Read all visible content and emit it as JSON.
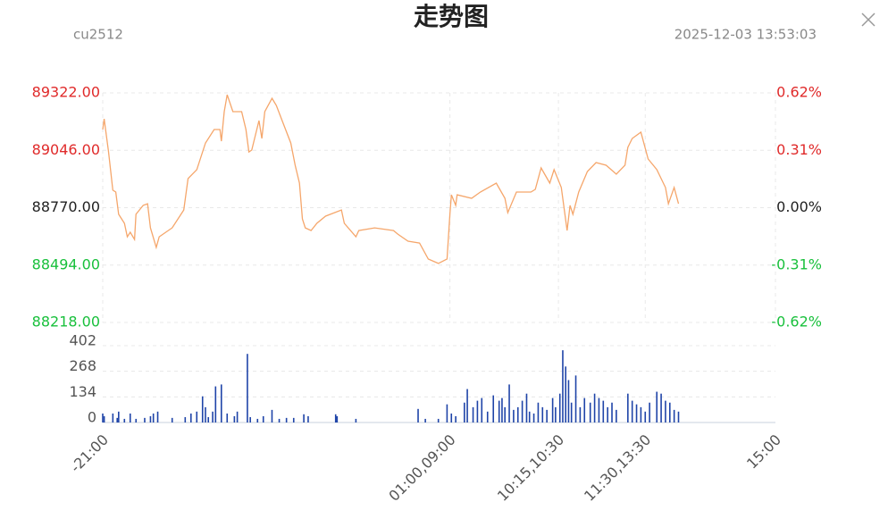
{
  "header": {
    "title": "走势图",
    "symbol": "cu2512",
    "timestamp": "2025-12-03 13:53:03"
  },
  "chart_data": [
    {
      "type": "line",
      "color": "#f5a66b",
      "up_color": "#e02a2a",
      "down_color": "#19c03c",
      "flat_color": "#222222",
      "grid": true,
      "x": [
        0,
        1,
        4,
        7,
        9,
        11,
        15,
        17,
        19,
        22,
        23,
        28,
        31,
        33,
        37,
        39,
        48,
        56,
        59,
        65,
        71,
        77,
        81,
        82,
        84,
        86,
        90,
        96,
        99,
        101,
        103,
        108,
        110,
        112,
        117,
        120,
        124,
        130,
        133,
        136,
        138,
        140,
        144,
        148,
        154,
        165,
        167,
        175,
        177,
        188,
        201,
        204,
        211,
        219,
        225,
        232,
        238,
        240,
        241,
        244,
        245,
        255,
        261,
        272,
        278,
        280,
        286,
        296,
        299,
        303,
        309,
        312,
        317,
        321,
        323,
        325,
        329,
        335,
        341,
        348,
        355,
        361,
        363,
        366,
        372,
        377,
        383,
        389,
        391,
        395,
        398
      ],
      "values": [
        89146,
        89197,
        89038,
        88854,
        88845,
        88738,
        88695,
        88630,
        88652,
        88617,
        88738,
        88781,
        88789,
        88673,
        88579,
        88630,
        88673,
        88759,
        88910,
        88953,
        89081,
        89146,
        89146,
        89090,
        89232,
        89313,
        89232,
        89232,
        89146,
        89038,
        89047,
        89189,
        89103,
        89232,
        89296,
        89262,
        89189,
        89081,
        88974,
        88888,
        88716,
        88673,
        88660,
        88695,
        88729,
        88759,
        88695,
        88630,
        88660,
        88673,
        88660,
        88643,
        88609,
        88600,
        88523,
        88502,
        88523,
        88738,
        88832,
        88781,
        88832,
        88815,
        88845,
        88888,
        88815,
        88746,
        88845,
        88845,
        88858,
        88961,
        88888,
        88953,
        88867,
        88660,
        88781,
        88738,
        88845,
        88944,
        88987,
        88974,
        88931,
        88974,
        89060,
        89103,
        89133,
        89004,
        88953,
        88867,
        88789,
        88867,
        88789
      ],
      "xlim": [
        0,
        465
      ],
      "xticks": [
        {
          "value": 0,
          "label": "-21:00"
        },
        {
          "value": 240,
          "label": "01:00,09:00"
        },
        {
          "value": 315,
          "label": "10:15,10:30"
        },
        {
          "value": 375,
          "label": "11:30,13:30"
        },
        {
          "value": 465,
          "label": "15:00"
        }
      ],
      "ylim": [
        88218,
        89322
      ],
      "yticks": [
        {
          "value": 89322,
          "label": "89322.00"
        },
        {
          "value": 89046,
          "label": "89046.00"
        },
        {
          "value": 88770,
          "label": "88770.00"
        },
        {
          "value": 88494,
          "label": "88494.00"
        },
        {
          "value": 88218,
          "label": "88218.00"
        }
      ],
      "y2lim": [
        -0.62,
        0.62
      ],
      "y2ticks": [
        {
          "value": 0.62,
          "label": "0.62%"
        },
        {
          "value": 0.31,
          "label": "0.31%"
        },
        {
          "value": 0,
          "label": "0.00%"
        },
        {
          "value": -0.31,
          "label": "-0.31%"
        },
        {
          "value": -0.62,
          "label": "-0.62%"
        }
      ]
    },
    {
      "type": "bar",
      "color": "#1f44a8",
      "grid": true,
      "x": [
        0,
        1,
        7,
        10,
        11,
        15,
        19,
        23,
        29,
        33,
        35,
        38,
        48,
        57,
        61,
        65,
        69,
        71,
        73,
        76,
        78,
        82,
        86,
        91,
        93,
        100,
        102,
        107,
        111,
        117,
        122,
        127,
        132,
        139,
        142,
        161,
        162,
        175,
        218,
        223,
        232,
        238,
        241,
        244,
        250,
        252,
        256,
        259,
        262,
        266,
        270,
        274,
        276,
        278,
        281,
        284,
        287,
        290,
        293,
        295,
        298,
        301,
        304,
        307,
        311,
        313,
        316,
        318,
        320,
        322,
        324,
        327,
        330,
        333,
        337,
        340,
        343,
        346,
        349,
        352,
        355,
        363,
        366,
        369,
        372,
        375,
        378,
        383,
        386,
        389,
        392,
        395,
        398
      ],
      "values": [
        47,
        33,
        47,
        24,
        57,
        19,
        47,
        19,
        24,
        33,
        47,
        57,
        24,
        28,
        47,
        57,
        137,
        80,
        28,
        57,
        189,
        199,
        47,
        33,
        57,
        359,
        28,
        19,
        33,
        66,
        19,
        24,
        24,
        43,
        33,
        43,
        33,
        19,
        71,
        19,
        19,
        95,
        47,
        33,
        104,
        175,
        80,
        114,
        128,
        57,
        142,
        114,
        128,
        80,
        199,
        66,
        80,
        114,
        151,
        57,
        47,
        104,
        80,
        66,
        128,
        80,
        151,
        378,
        293,
        222,
        104,
        246,
        80,
        128,
        104,
        151,
        128,
        114,
        80,
        104,
        66,
        151,
        114,
        95,
        80,
        57,
        104,
        161,
        151,
        114,
        104,
        66,
        57
      ],
      "xlim": [
        0,
        465
      ],
      "ylim": [
        0,
        402
      ],
      "yticks": [
        0,
        134,
        268,
        402
      ]
    }
  ]
}
